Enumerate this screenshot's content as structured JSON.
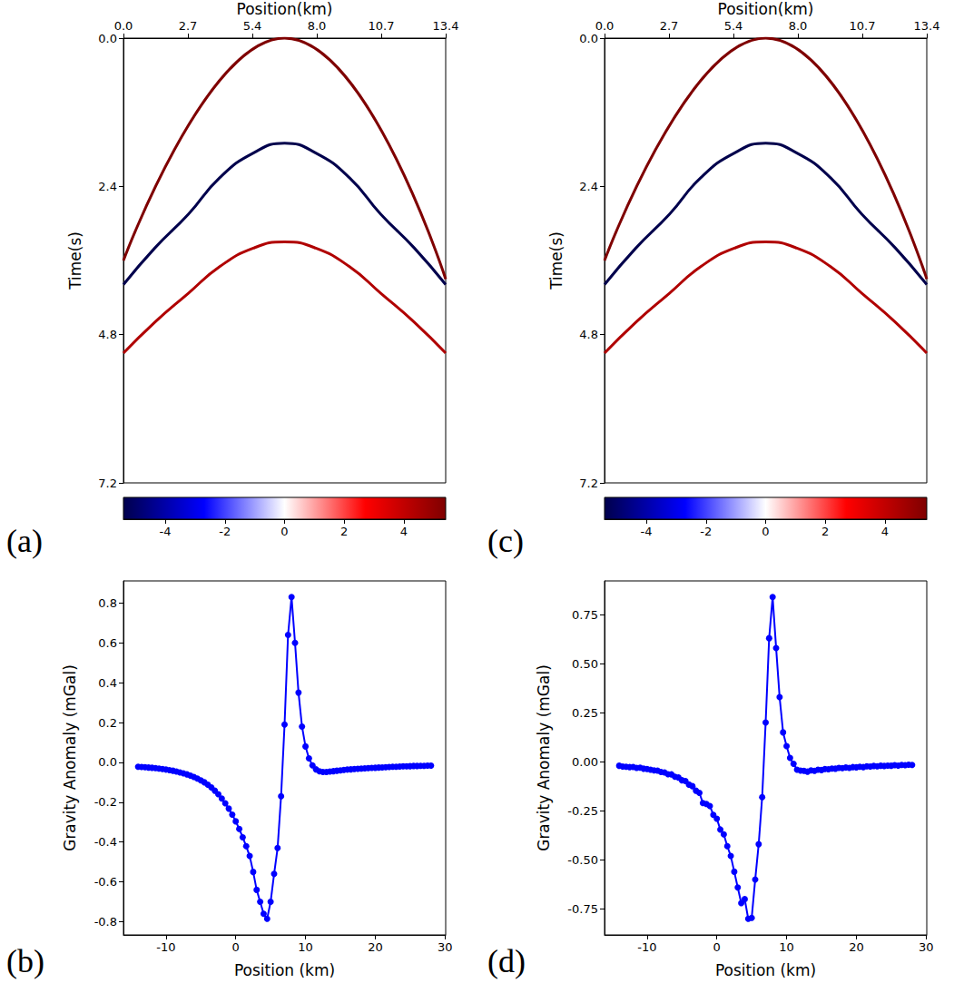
{
  "chart_data": [
    {
      "type": "line",
      "title": "(a)",
      "x_label": "Position(km)",
      "y_label": "Time(s)",
      "xlim": [
        0,
        13.4
      ],
      "xticks": [
        {
          "value": 0,
          "label": "0.0"
        },
        {
          "value": 2.68,
          "label": "2.7"
        },
        {
          "value": 5.36,
          "label": "5.4"
        },
        {
          "value": 8.04,
          "label": "8.0"
        },
        {
          "value": 10.72,
          "label": "10.7"
        },
        13.4
      ],
      "ylim": [
        0,
        7.2
      ],
      "yticks": [
        {
          "value": 0,
          "label": "0.0"
        },
        2.4,
        4.8,
        7.2
      ],
      "grid": false,
      "colorbar": {
        "range": [
          -5.4,
          5.4
        ],
        "ticks": [
          -4,
          -2,
          0,
          2,
          4
        ]
      },
      "series": [
        {
          "color": "#7f0000",
          "line_style": "solid",
          "x": [
            0,
            6.7,
            13.4
          ],
          "values": [
            3.6,
            0,
            3.9
          ]
        },
        {
          "color": "#00004c",
          "line_style": "solid",
          "x": [
            0,
            1.3,
            2.7,
            4.0,
            5.4,
            6.7,
            8.0,
            9.4,
            10.7,
            12.1,
            13.4
          ],
          "values": [
            3.99,
            3.4,
            2.85,
            2.26,
            1.86,
            1.7,
            1.86,
            2.26,
            2.85,
            3.4,
            3.99
          ]
        },
        {
          "color": "#b00000",
          "line_style": "solid",
          "x": [
            0,
            1.3,
            2.7,
            4.0,
            5.4,
            6.7,
            8.0,
            9.4,
            10.7,
            12.1,
            13.4
          ],
          "values": [
            5.1,
            4.6,
            4.13,
            3.7,
            3.4,
            3.3,
            3.4,
            3.7,
            4.13,
            4.6,
            5.1
          ]
        }
      ]
    },
    {
      "type": "line",
      "title": "(b)",
      "x_label": "Position (km)",
      "y_label": "Gravity Anomaly (mGal)",
      "xlim": [
        -16.1,
        30.1
      ],
      "xticks": [
        -10,
        0,
        10,
        20,
        30
      ],
      "ylim": [
        -0.866,
        0.911
      ],
      "yticks": [
        -0.8,
        -0.6,
        -0.4,
        -0.2,
        {
          "value": 0,
          "label": "0.0"
        },
        0.2,
        0.4,
        0.6,
        0.8
      ],
      "grid": false,
      "color": "#0000ff",
      "marker": "circle",
      "line_style": "solid",
      "x": [
        -14,
        -13.5,
        -13,
        -12.5,
        -12,
        -11.5,
        -11,
        -10.5,
        -10,
        -9.5,
        -9,
        -8.5,
        -8,
        -7.5,
        -7,
        -6.5,
        -6,
        -5.5,
        -5,
        -4.5,
        -4,
        -3.5,
        -3,
        -2.5,
        -2,
        -1.5,
        -1,
        -0.5,
        0,
        0.5,
        1,
        1.5,
        2,
        2.5,
        3,
        3.5,
        4,
        4.5,
        5,
        5.5,
        6,
        6.5,
        7,
        7.5,
        8,
        8.5,
        9,
        9.5,
        10,
        10.5,
        11,
        11.5,
        12,
        12.5,
        13,
        13.5,
        14,
        14.5,
        15,
        15.5,
        16,
        16.5,
        17,
        17.5,
        18,
        18.5,
        19,
        19.5,
        20,
        20.5,
        21,
        21.5,
        22,
        22.5,
        23,
        23.5,
        24,
        24.5,
        25,
        25.5,
        26,
        26.5,
        27,
        27.5,
        28
      ],
      "values": [
        -0.022,
        -0.023,
        -0.024,
        -0.026,
        -0.027,
        -0.029,
        -0.031,
        -0.033,
        -0.036,
        -0.039,
        -0.042,
        -0.046,
        -0.05,
        -0.055,
        -0.06,
        -0.066,
        -0.073,
        -0.081,
        -0.09,
        -0.1,
        -0.112,
        -0.126,
        -0.142,
        -0.16,
        -0.181,
        -0.205,
        -0.232,
        -0.262,
        -0.296,
        -0.334,
        -0.376,
        -0.421,
        -0.47,
        -0.55,
        -0.64,
        -0.7,
        -0.76,
        -0.785,
        -0.7,
        -0.56,
        -0.43,
        -0.17,
        0.19,
        0.64,
        0.83,
        0.6,
        0.35,
        0.18,
        0.08,
        0.02,
        -0.015,
        -0.035,
        -0.045,
        -0.048,
        -0.048,
        -0.046,
        -0.044,
        -0.042,
        -0.04,
        -0.038,
        -0.036,
        -0.035,
        -0.033,
        -0.032,
        -0.031,
        -0.03,
        -0.029,
        -0.028,
        -0.027,
        -0.026,
        -0.025,
        -0.024,
        -0.023,
        -0.022,
        -0.022,
        -0.021,
        -0.02,
        -0.02,
        -0.019,
        -0.018,
        -0.018,
        -0.017,
        -0.017,
        -0.016,
        -0.016
      ]
    },
    {
      "type": "line",
      "title": "(c)",
      "x_label": "Position(km)",
      "y_label": "Time(s)",
      "xlim": [
        0,
        13.4
      ],
      "xticks": [
        {
          "value": 0,
          "label": "0.0"
        },
        {
          "value": 2.68,
          "label": "2.7"
        },
        {
          "value": 5.36,
          "label": "5.4"
        },
        {
          "value": 8.04,
          "label": "8.0"
        },
        {
          "value": 10.72,
          "label": "10.7"
        },
        13.4
      ],
      "ylim": [
        0,
        7.2
      ],
      "yticks": [
        {
          "value": 0,
          "label": "0.0"
        },
        2.4,
        4.8,
        7.2
      ],
      "grid": false,
      "colorbar": {
        "range": [
          -5.4,
          5.4
        ],
        "ticks": [
          -4,
          -2,
          0,
          2,
          4
        ]
      },
      "series": [
        {
          "color": "#7f0000",
          "line_style": "solid",
          "x": [
            0,
            6.7,
            13.4
          ],
          "values": [
            3.6,
            0,
            3.9
          ]
        },
        {
          "color": "#00004c",
          "line_style": "solid",
          "x": [
            0,
            1.3,
            2.7,
            4.0,
            5.4,
            6.7,
            8.0,
            9.4,
            10.7,
            12.1,
            13.4
          ],
          "values": [
            3.99,
            3.4,
            2.85,
            2.26,
            1.86,
            1.7,
            1.86,
            2.26,
            2.85,
            3.4,
            3.99
          ]
        },
        {
          "color": "#b00000",
          "line_style": "solid",
          "x": [
            0,
            1.3,
            2.7,
            4.0,
            5.4,
            6.7,
            8.0,
            9.4,
            10.7,
            12.1,
            13.4
          ],
          "values": [
            5.1,
            4.6,
            4.13,
            3.7,
            3.4,
            3.3,
            3.4,
            3.7,
            4.13,
            4.6,
            5.1
          ]
        }
      ]
    },
    {
      "type": "line",
      "title": "(d)",
      "x_label": "Position (km)",
      "y_label": "Gravity Anomaly (mGal)",
      "xlim": [
        -16.1,
        30.1
      ],
      "xticks": [
        -10,
        0,
        10,
        20,
        30
      ],
      "ylim": [
        -0.882,
        0.922
      ],
      "yticks": [
        -0.75,
        {
          "value": -0.5,
          "label": "-0.50"
        },
        -0.25,
        {
          "value": 0,
          "label": "0.00"
        },
        0.25,
        {
          "value": 0.5,
          "label": "0.50"
        },
        0.75
      ],
      "grid": false,
      "color": "#0000ff",
      "marker": "circle",
      "line_style": "solid",
      "x": [
        -14,
        -13.5,
        -13,
        -12.5,
        -12,
        -11.5,
        -11,
        -10.5,
        -10,
        -9.5,
        -9,
        -8.5,
        -8,
        -7.5,
        -7,
        -6.5,
        -6,
        -5.5,
        -5,
        -4.5,
        -4,
        -3.5,
        -3,
        -2.5,
        -2,
        -1.5,
        -1,
        -0.5,
        0,
        0.5,
        1,
        1.5,
        2,
        2.5,
        3,
        3.5,
        4,
        4.5,
        5,
        5.5,
        6,
        6.5,
        7,
        7.5,
        8,
        8.5,
        9,
        9.5,
        10,
        10.5,
        11,
        11.5,
        12,
        12.5,
        13,
        13.5,
        14,
        14.5,
        15,
        15.5,
        16,
        16.5,
        17,
        17.5,
        18,
        18.5,
        19,
        19.5,
        20,
        20.5,
        21,
        21.5,
        22,
        22.5,
        23,
        23.5,
        24,
        24.5,
        25,
        25.5,
        26,
        26.5,
        27,
        27.5,
        28
      ],
      "values": [
        -0.02,
        -0.024,
        -0.025,
        -0.027,
        -0.026,
        -0.031,
        -0.03,
        -0.035,
        -0.037,
        -0.04,
        -0.044,
        -0.045,
        -0.052,
        -0.054,
        -0.063,
        -0.064,
        -0.076,
        -0.08,
        -0.094,
        -0.098,
        -0.116,
        -0.124,
        -0.147,
        -0.158,
        -0.21,
        -0.215,
        -0.225,
        -0.27,
        -0.29,
        -0.345,
        -0.37,
        -0.43,
        -0.48,
        -0.56,
        -0.64,
        -0.72,
        -0.7,
        -0.8,
        -0.795,
        -0.6,
        -0.42,
        -0.18,
        0.2,
        0.63,
        0.84,
        0.58,
        0.33,
        0.15,
        0.08,
        0.02,
        -0.01,
        -0.04,
        -0.045,
        -0.046,
        -0.05,
        -0.044,
        -0.046,
        -0.04,
        -0.042,
        -0.037,
        -0.038,
        -0.034,
        -0.035,
        -0.031,
        -0.032,
        -0.029,
        -0.031,
        -0.027,
        -0.028,
        -0.025,
        -0.027,
        -0.023,
        -0.024,
        -0.021,
        -0.023,
        -0.02,
        -0.021,
        -0.019,
        -0.02,
        -0.017,
        -0.019,
        -0.016,
        -0.017,
        -0.015,
        -0.016
      ]
    }
  ]
}
